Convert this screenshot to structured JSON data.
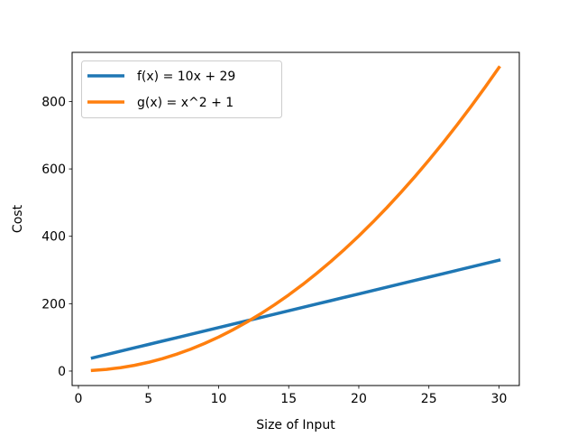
{
  "chart_data": {
    "type": "line",
    "title": "",
    "xlabel": "Size of Input",
    "ylabel": "Cost",
    "xlim": [
      -0.45,
      31.45
    ],
    "ylim": [
      -42.95,
      945.95
    ],
    "xticks": [
      0,
      5,
      10,
      15,
      20,
      25,
      30
    ],
    "yticks": [
      0,
      200,
      400,
      600,
      800
    ],
    "grid": false,
    "legend_position": "upper-left",
    "x": [
      1,
      2,
      3,
      4,
      5,
      6,
      7,
      8,
      9,
      10,
      11,
      12,
      13,
      14,
      15,
      16,
      17,
      18,
      19,
      20,
      21,
      22,
      23,
      24,
      25,
      26,
      27,
      28,
      29,
      30
    ],
    "series": [
      {
        "name": "f(x) = 10x + 29",
        "color": "#1f77b4",
        "values": [
          39,
          49,
          59,
          69,
          79,
          89,
          99,
          109,
          119,
          129,
          139,
          149,
          159,
          169,
          179,
          189,
          199,
          209,
          219,
          229,
          239,
          249,
          259,
          269,
          279,
          289,
          299,
          309,
          319,
          329
        ]
      },
      {
        "name": "g(x) = x^2 + 1",
        "color": "#ff7f0e",
        "values": [
          2,
          5,
          10,
          17,
          26,
          37,
          50,
          65,
          82,
          101,
          122,
          145,
          170,
          197,
          226,
          257,
          290,
          325,
          362,
          401,
          442,
          485,
          530,
          577,
          626,
          677,
          730,
          785,
          842,
          901
        ]
      }
    ]
  }
}
